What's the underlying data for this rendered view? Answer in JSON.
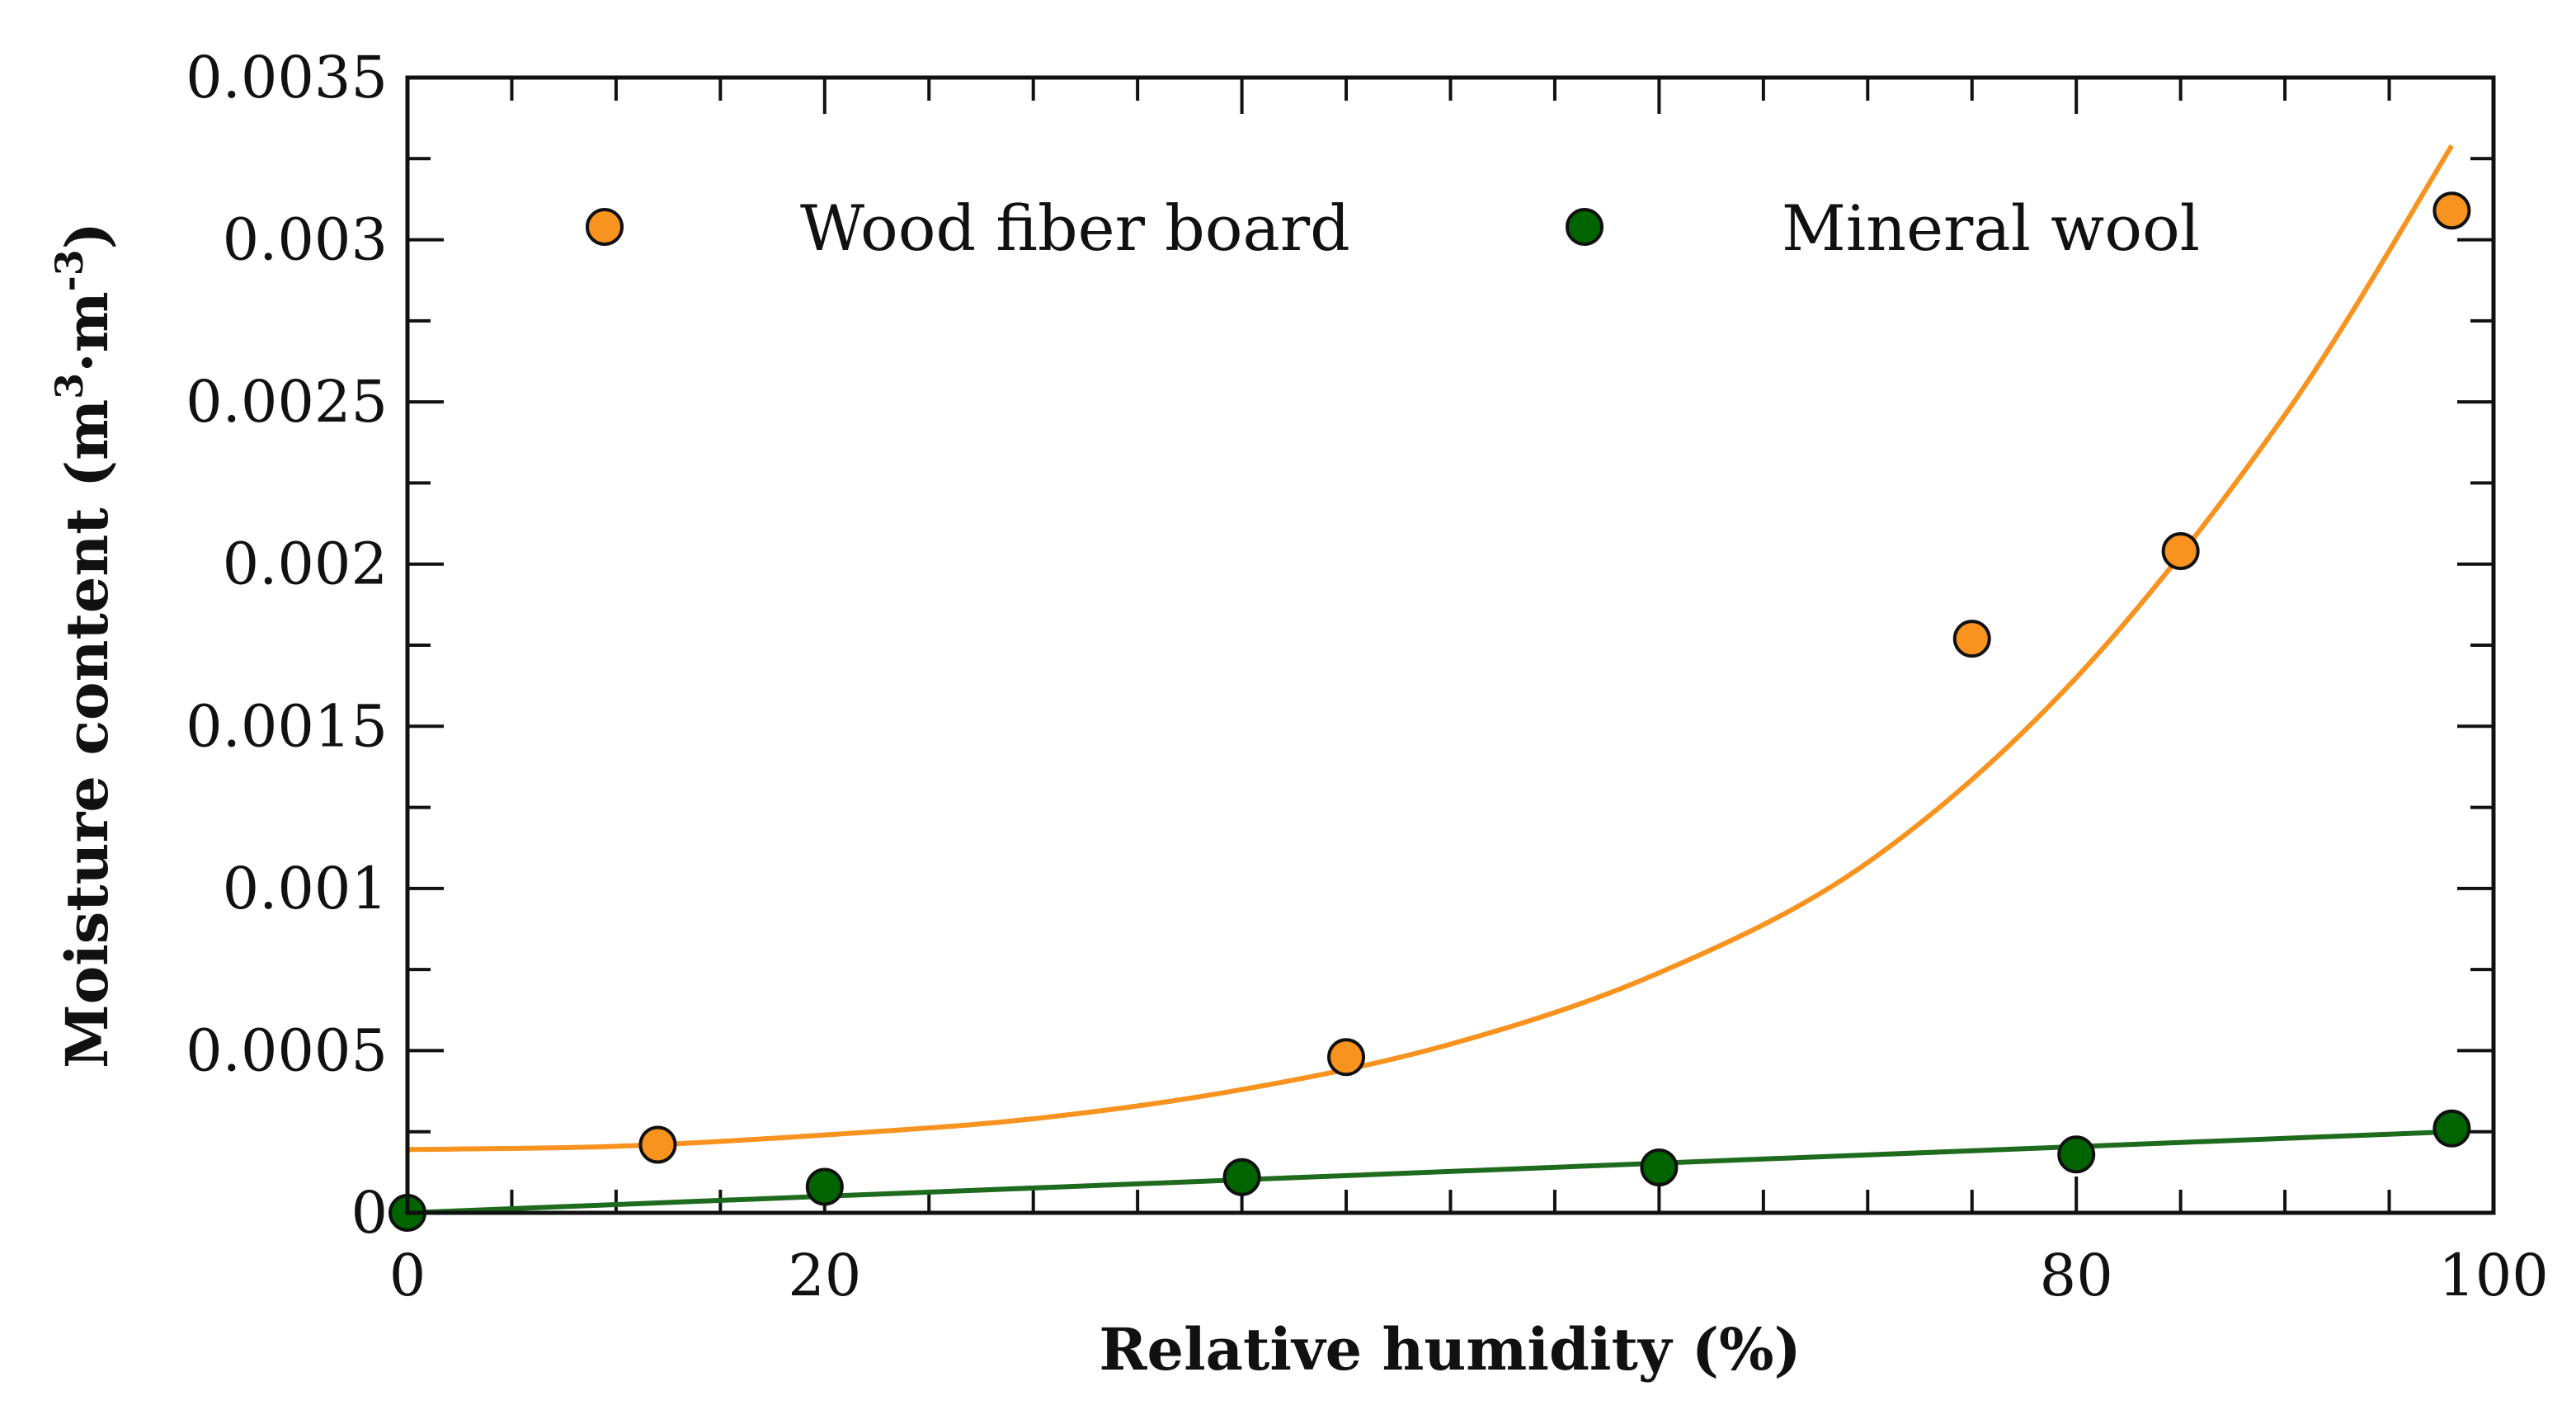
{
  "chart_data": {
    "type": "scatter",
    "title": "",
    "xlabel": "Relative humidity (%)",
    "ylabel_main": "Moisture content (m",
    "ylabel_sup1": "3",
    "ylabel_mid": "·m",
    "ylabel_sup2": "-3",
    "ylabel_end": ")",
    "xlim": [
      0,
      100
    ],
    "ylim": [
      0,
      0.0035
    ],
    "x_ticks": [
      {
        "value": 0,
        "label": "0"
      },
      {
        "value": 20,
        "label": "20"
      },
      {
        "value": 80,
        "label": "80"
      },
      {
        "value": 100,
        "label": "100"
      }
    ],
    "x_minor_step": 5,
    "y_ticks": [
      {
        "value": 0,
        "label": "0"
      },
      {
        "value": 0.0005,
        "label": "0.0005"
      },
      {
        "value": 0.001,
        "label": "0.001"
      },
      {
        "value": 0.0015,
        "label": "0.0015"
      },
      {
        "value": 0.002,
        "label": "0.002"
      },
      {
        "value": 0.0025,
        "label": "0.0025"
      },
      {
        "value": 0.003,
        "label": "0.003"
      },
      {
        "value": 0.0035,
        "label": "0.0035"
      }
    ],
    "y_minor_step": 0.00025,
    "legend_position": "top",
    "series": [
      {
        "name": "Wood fiber board",
        "color": "#F7931E",
        "line_color": "#F7931E",
        "points": [
          {
            "x": 12,
            "y": 0.00021
          },
          {
            "x": 45,
            "y": 0.00048
          },
          {
            "x": 75,
            "y": 0.00177
          },
          {
            "x": 85,
            "y": 0.00204
          },
          {
            "x": 98,
            "y": 0.00309
          }
        ],
        "fit_curve": [
          {
            "x": 0,
            "y": 0.000195
          },
          {
            "x": 10,
            "y": 0.000205
          },
          {
            "x": 20,
            "y": 0.00024
          },
          {
            "x": 30,
            "y": 0.00029
          },
          {
            "x": 40,
            "y": 0.00038
          },
          {
            "x": 50,
            "y": 0.00052
          },
          {
            "x": 60,
            "y": 0.00074
          },
          {
            "x": 70,
            "y": 0.00108
          },
          {
            "x": 80,
            "y": 0.00165
          },
          {
            "x": 90,
            "y": 0.00246
          },
          {
            "x": 98,
            "y": 0.00329
          }
        ]
      },
      {
        "name": "Mineral wool",
        "color": "#006400",
        "line_color": "#1E6B1E",
        "points": [
          {
            "x": 0,
            "y": 0.0
          },
          {
            "x": 20,
            "y": 8e-05
          },
          {
            "x": 40,
            "y": 0.00011
          },
          {
            "x": 60,
            "y": 0.00014
          },
          {
            "x": 80,
            "y": 0.00018
          },
          {
            "x": 98,
            "y": 0.00026
          }
        ],
        "fit_curve": [
          {
            "x": 0,
            "y": 0.0
          },
          {
            "x": 98,
            "y": 0.00025
          }
        ]
      }
    ]
  }
}
